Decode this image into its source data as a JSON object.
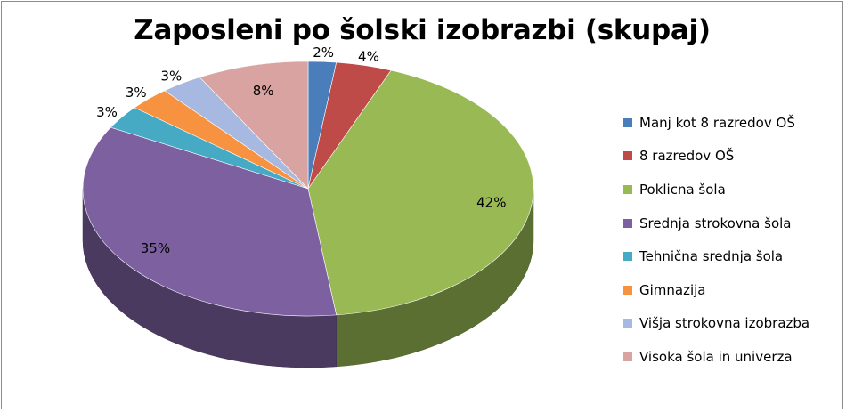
{
  "chart_data": {
    "type": "pie",
    "title": "Zaposleni po šolski izobrazbi (skupaj)",
    "categories": [
      "Manj kot 8 razredov OŠ",
      "8 razredov OŠ",
      "Poklicna šola",
      "Srednja strokovna šola",
      "Tehnična srednja šola",
      "Gimnazija",
      "Višja strokovna izobrazba",
      "Visoka šola in univerza"
    ],
    "values": [
      2,
      4,
      42,
      35,
      3,
      3,
      3,
      8
    ],
    "labels": [
      "2%",
      "4%",
      "42%",
      "35%",
      "3%",
      "3%",
      "3%",
      "8%"
    ],
    "colors": [
      "#4a7ebb",
      "#be4b48",
      "#98b954",
      "#7d60a0",
      "#46aac5",
      "#f69240",
      "#a7b9e1",
      "#d9a3a2"
    ],
    "style": "3d-pie",
    "legend": "right"
  }
}
